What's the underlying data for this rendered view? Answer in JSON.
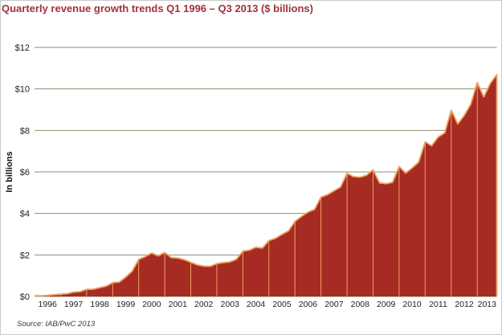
{
  "header": {
    "title": "Quarterly revenue growth trends Q1 1996 – Q3 2013 ($ billions)"
  },
  "footer": {
    "source_note": "Source: IAB/PwC 2013"
  },
  "colors": {
    "background": "#ffffff",
    "title_text": "#9e3338",
    "axis_text": "#1f1f1f",
    "source_text": "#3a3a3a",
    "gridline": "#8f8f72",
    "area_fill": "#a62b23",
    "area_stroke": "#efa35e",
    "year_separator": "#efa35e"
  },
  "chart_data": {
    "type": "area",
    "title": "Quarterly revenue growth trends Q1 1996 – Q3 2013 ($ billions)",
    "ylabel": "In billions",
    "xlabel": "",
    "ylim": [
      0,
      12
    ],
    "ytick_values": [
      0,
      2,
      4,
      6,
      8,
      10,
      12
    ],
    "ytick_labels": [
      "$0",
      "$2",
      "$4",
      "$6",
      "$8",
      "$10",
      "$12"
    ],
    "grid": "horizontal",
    "legend": "none",
    "x_unit": "quarter",
    "x_range_label": "Q1 1996 – Q3 2013",
    "year_labels": [
      "1996",
      "1997",
      "1998",
      "1999",
      "2000",
      "2001",
      "2002",
      "2003",
      "2004",
      "2005",
      "2006",
      "2007",
      "2008",
      "2009",
      "2010",
      "2011",
      "2012",
      "2013"
    ],
    "quarters_in_last_year": 3,
    "year_separator_lines": true,
    "series": [
      {
        "name": "Quarterly revenue ($ billions)",
        "values": [
          0.03,
          0.05,
          0.08,
          0.11,
          0.13,
          0.21,
          0.23,
          0.34,
          0.35,
          0.42,
          0.49,
          0.66,
          0.69,
          0.93,
          1.22,
          1.78,
          1.92,
          2.09,
          1.95,
          2.12,
          1.87,
          1.85,
          1.77,
          1.64,
          1.52,
          1.46,
          1.45,
          1.58,
          1.63,
          1.66,
          1.79,
          2.18,
          2.23,
          2.37,
          2.33,
          2.69,
          2.8,
          2.99,
          3.15,
          3.61,
          3.85,
          4.06,
          4.19,
          4.78,
          4.9,
          5.09,
          5.27,
          5.93,
          5.77,
          5.75,
          5.84,
          6.1,
          5.47,
          5.43,
          5.5,
          6.26,
          5.94,
          6.19,
          6.47,
          7.45,
          7.26,
          7.68,
          7.88,
          8.97,
          8.31,
          8.72,
          9.26,
          10.31,
          9.61,
          10.26,
          10.69
        ]
      }
    ]
  }
}
